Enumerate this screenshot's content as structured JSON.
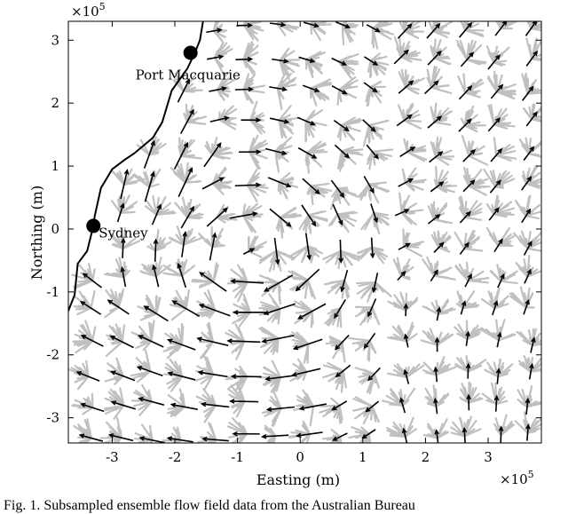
{
  "chart_data": {
    "type": "quiver",
    "xlabel": "Easting (m)",
    "ylabel": "Northing (m)",
    "x_exponent": "×10",
    "x_exponent_power": "5",
    "y_exponent": "×10",
    "y_exponent_power": "5",
    "xlim": [
      -3.7,
      3.85
    ],
    "ylim": [
      -3.4,
      3.3
    ],
    "xticks": [
      -3,
      -2,
      -1,
      0,
      1,
      2,
      3
    ],
    "yticks": [
      -3,
      -2,
      -1,
      0,
      1,
      2,
      3
    ],
    "xtick_labels": [
      "-3",
      "-2",
      "-1",
      "0",
      "1",
      "2",
      "3"
    ],
    "ytick_labels": [
      "-3",
      "-2",
      "-1",
      "0",
      "1",
      "2",
      "3"
    ],
    "grid": false,
    "colors": {
      "ensemble": "#c0c0c0",
      "mean": "#000000",
      "coast": "#000000"
    },
    "coastline": [
      [
        -1.55,
        3.3
      ],
      [
        -1.6,
        3.0
      ],
      [
        -1.68,
        2.8
      ],
      [
        -1.8,
        2.55
      ],
      [
        -2.05,
        2.2
      ],
      [
        -2.2,
        1.7
      ],
      [
        -2.35,
        1.45
      ],
      [
        -2.65,
        1.2
      ],
      [
        -2.8,
        1.1
      ],
      [
        -3.0,
        0.95
      ],
      [
        -3.18,
        0.65
      ],
      [
        -3.28,
        0.2
      ],
      [
        -3.3,
        0.05
      ],
      [
        -3.4,
        -0.35
      ],
      [
        -3.55,
        -0.55
      ],
      [
        -3.6,
        -1.05
      ],
      [
        -3.7,
        -1.3
      ]
    ],
    "cities": [
      {
        "name": "Port Macquarie",
        "x": -1.75,
        "y": 2.8
      },
      {
        "name": "Sydney",
        "x": -3.3,
        "y": 0.05
      }
    ]
  },
  "caption": "Fig. 1.    Subsampled ensemble flow field data from the Australian Bureau"
}
